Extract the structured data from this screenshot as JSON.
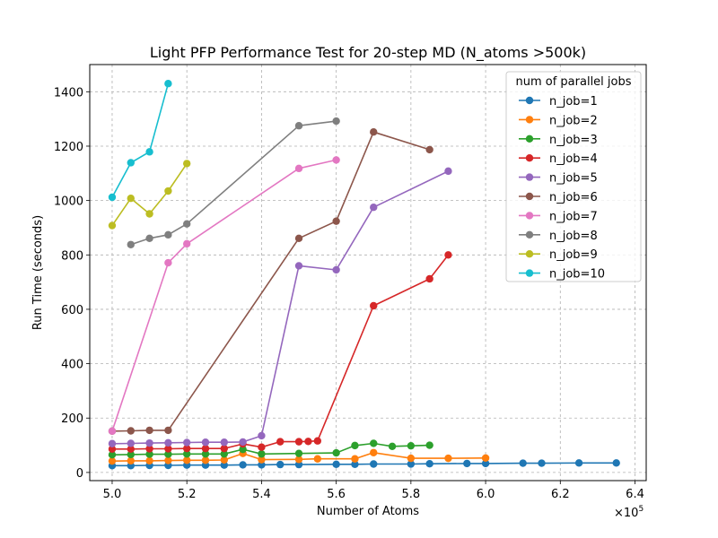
{
  "chart_data": {
    "type": "line",
    "title": "Light PFP Performance Test for 20-step MD (N_atoms >500k)",
    "xlabel": "Number of Atoms",
    "ylabel": "Run Time (seconds)",
    "x_offset_label": "×10",
    "x_offset_exponent": "5",
    "xlim": [
      4.94,
      6.43
    ],
    "ylim": [
      -30,
      1500
    ],
    "xticks": [
      5.0,
      5.2,
      5.4,
      5.6,
      5.8,
      6.0,
      6.2,
      6.4
    ],
    "xtick_labels": [
      "5.0",
      "5.2",
      "5.4",
      "5.6",
      "5.8",
      "6.0",
      "6.2",
      "6.4"
    ],
    "yticks": [
      0,
      200,
      400,
      600,
      800,
      1000,
      1200,
      1400
    ],
    "ytick_labels": [
      "0",
      "200",
      "400",
      "600",
      "800",
      "1000",
      "1200",
      "1400"
    ],
    "grid": true,
    "legend_title": "num of parallel jobs",
    "legend_position": "upper right",
    "series": [
      {
        "name": "n_job=1",
        "color": "#1f77b4",
        "x": [
          5.0,
          5.05,
          5.1,
          5.15,
          5.2,
          5.25,
          5.3,
          5.35,
          5.4,
          5.45,
          5.5,
          5.6,
          5.65,
          5.7,
          5.8,
          5.85,
          5.95,
          6.0,
          6.1,
          6.15,
          6.25,
          6.35
        ],
        "y": [
          25,
          25,
          26,
          26,
          27,
          27,
          27,
          28,
          28,
          29,
          29,
          30,
          30,
          31,
          31,
          32,
          33,
          33,
          34,
          34,
          35,
          35
        ]
      },
      {
        "name": "n_job=2",
        "color": "#ff7f0e",
        "x": [
          5.0,
          5.05,
          5.1,
          5.15,
          5.2,
          5.25,
          5.3,
          5.35,
          5.4,
          5.5,
          5.55,
          5.65,
          5.7,
          5.8,
          5.9,
          6.0
        ],
        "y": [
          42,
          43,
          43,
          44,
          45,
          45,
          46,
          70,
          47,
          48,
          50,
          50,
          73,
          52,
          52,
          53
        ]
      },
      {
        "name": "n_job=3",
        "color": "#2ca02c",
        "x": [
          5.0,
          5.05,
          5.1,
          5.15,
          5.2,
          5.25,
          5.3,
          5.35,
          5.4,
          5.5,
          5.6,
          5.65,
          5.7,
          5.75,
          5.8,
          5.85
        ],
        "y": [
          65,
          66,
          67,
          67,
          68,
          68,
          68,
          85,
          68,
          70,
          72,
          99,
          107,
          96,
          98,
          100
        ]
      },
      {
        "name": "n_job=4",
        "color": "#d62728",
        "x": [
          5.0,
          5.05,
          5.1,
          5.15,
          5.2,
          5.25,
          5.3,
          5.35,
          5.4,
          5.45,
          5.5,
          5.525,
          5.55,
          5.7,
          5.85,
          5.9
        ],
        "y": [
          86,
          86,
          87,
          87,
          88,
          88,
          88,
          105,
          93,
          113,
          113,
          114,
          116,
          613,
          712,
          800
        ]
      },
      {
        "name": "n_job=5",
        "color": "#9467bd",
        "x": [
          5.0,
          5.05,
          5.1,
          5.15,
          5.2,
          5.25,
          5.3,
          5.35,
          5.4,
          5.5,
          5.6,
          5.7,
          5.9
        ],
        "y": [
          106,
          107,
          108,
          109,
          110,
          111,
          111,
          112,
          135,
          760,
          745,
          975,
          1108
        ]
      },
      {
        "name": "n_job=6",
        "color": "#8c564b",
        "x": [
          5.0,
          5.05,
          5.1,
          5.15,
          5.5,
          5.6,
          5.7,
          5.85
        ],
        "y": [
          152,
          153,
          155,
          155,
          861,
          924,
          1252,
          1187
        ]
      },
      {
        "name": "n_job=7",
        "color": "#e377c2",
        "x": [
          5.0,
          5.15,
          5.2,
          5.5,
          5.6
        ],
        "y": [
          152,
          771,
          841,
          1118,
          1149
        ]
      },
      {
        "name": "n_job=8",
        "color": "#7f7f7f",
        "x": [
          5.05,
          5.1,
          5.15,
          5.2,
          5.5,
          5.6
        ],
        "y": [
          838,
          861,
          874,
          914,
          1275,
          1292
        ]
      },
      {
        "name": "n_job=9",
        "color": "#bcbd22",
        "x": [
          5.0,
          5.05,
          5.1,
          5.15,
          5.2
        ],
        "y": [
          908,
          1008,
          951,
          1035,
          1136
        ]
      },
      {
        "name": "n_job=10",
        "color": "#17becf",
        "x": [
          5.0,
          5.05,
          5.1,
          5.15
        ],
        "y": [
          1012,
          1139,
          1179,
          1430
        ]
      }
    ]
  }
}
